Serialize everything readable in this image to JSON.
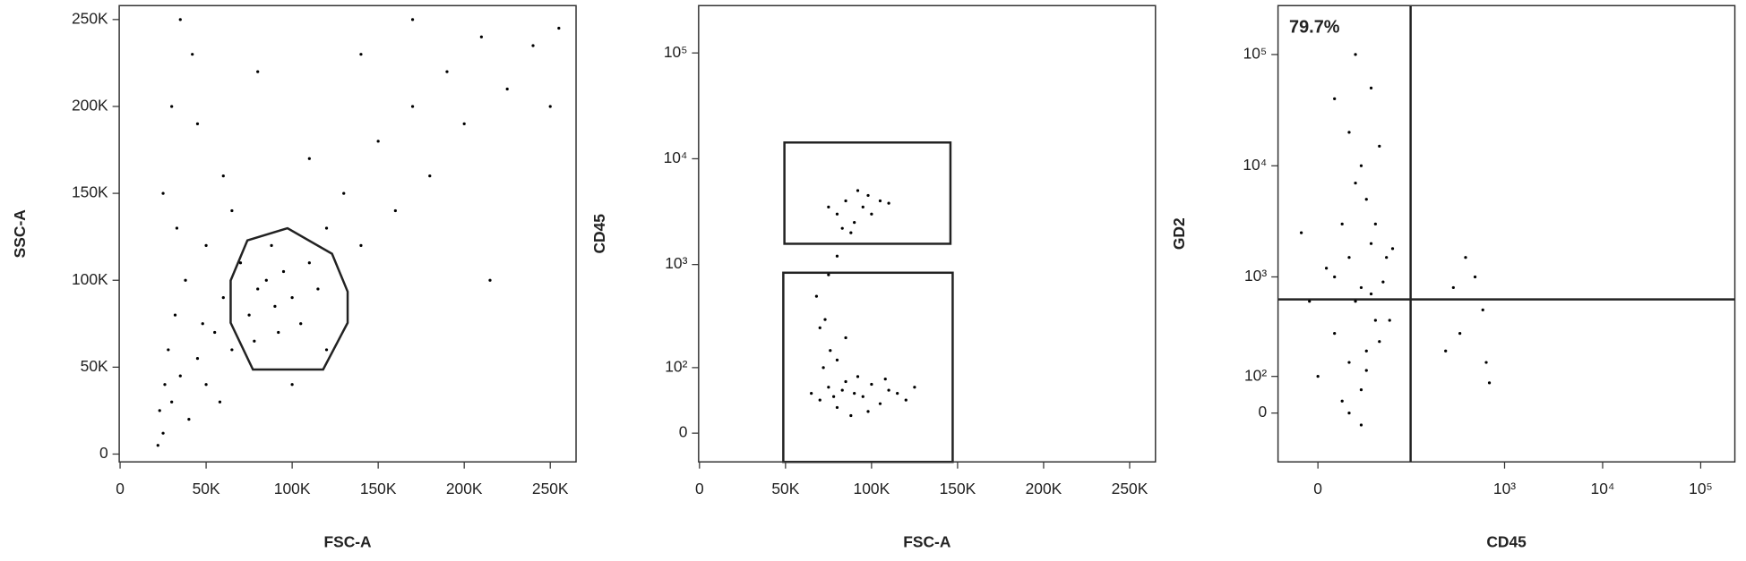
{
  "chart_data": [
    {
      "type": "scatter",
      "xlabel": "FSC-A",
      "ylabel": "SSC-A",
      "xscale": "linear",
      "yscale": "linear",
      "color": "#000000",
      "xlim": [
        -500,
        265000
      ],
      "ylim": [
        -4500,
        258000
      ],
      "xticks": [
        0,
        {
          "value": 50000,
          "label": "50K"
        },
        {
          "value": 100000,
          "label": "100K"
        },
        {
          "value": 150000,
          "label": "150K"
        },
        {
          "value": 200000,
          "label": "200K"
        },
        {
          "value": 250000,
          "label": "250K"
        }
      ],
      "yticks": [
        0,
        {
          "value": 50000,
          "label": "50K"
        },
        {
          "value": 100000,
          "label": "100K"
        },
        {
          "value": 150000,
          "label": "150K"
        },
        {
          "value": 200000,
          "label": "200K"
        },
        {
          "value": 250000,
          "label": "250K"
        }
      ],
      "x": [
        22000,
        25000,
        30000,
        35000,
        28000,
        40000,
        45000,
        50000,
        32000,
        38000,
        25000,
        30000,
        35000,
        55000,
        60000,
        65000,
        70000,
        75000,
        80000,
        85000,
        90000,
        95000,
        100000,
        105000,
        110000,
        88000,
        92000,
        78000,
        115000,
        120000,
        130000,
        140000,
        150000,
        160000,
        170000,
        180000,
        190000,
        200000,
        210000,
        225000,
        240000,
        255000,
        60000,
        45000,
        80000,
        110000,
        140000,
        170000,
        120000,
        100000,
        65000,
        42000,
        50000,
        33000,
        26000,
        23000,
        48000,
        58000,
        215000,
        250000
      ],
      "values": [
        5000,
        12000,
        30000,
        45000,
        60000,
        20000,
        55000,
        40000,
        80000,
        100000,
        150000,
        200000,
        250000,
        70000,
        90000,
        60000,
        110000,
        80000,
        95000,
        100000,
        85000,
        105000,
        90000,
        75000,
        110000,
        120000,
        70000,
        65000,
        95000,
        130000,
        150000,
        120000,
        180000,
        140000,
        200000,
        160000,
        220000,
        190000,
        240000,
        210000,
        235000,
        245000,
        160000,
        190000,
        220000,
        170000,
        230000,
        250000,
        60000,
        40000,
        140000,
        230000,
        120000,
        130000,
        40000,
        25000,
        75000,
        30000,
        100000,
        200000
      ]
    },
    {
      "type": "scatter",
      "xlabel": "FSC-A",
      "ylabel": "CD45",
      "xscale": "linear",
      "yscale": "biexponential",
      "color": "#000000",
      "xlim": [
        -500,
        265000
      ],
      "ylim": [
        -34,
        280000
      ],
      "xticks": [
        0,
        {
          "value": 50000,
          "label": "50K"
        },
        {
          "value": 100000,
          "label": "100K"
        },
        {
          "value": 150000,
          "label": "150K"
        },
        {
          "value": 200000,
          "label": "200K"
        },
        {
          "value": 250000,
          "label": "250K"
        }
      ],
      "yticks": [
        0,
        {
          "value": 100,
          "label": "10²"
        },
        {
          "value": 1000,
          "label": "10³"
        },
        {
          "value": 10000,
          "label": "10⁴"
        },
        {
          "value": 100000,
          "label": "10⁵"
        }
      ],
      "x": [
        70000,
        75000,
        80000,
        85000,
        90000,
        95000,
        100000,
        105000,
        110000,
        115000,
        120000,
        88000,
        92000,
        98000,
        83000,
        78000,
        108000,
        125000,
        65000,
        72000,
        76000,
        70000,
        68000,
        73000,
        80000,
        85000,
        75000,
        80000,
        80000,
        85000,
        90000,
        95000,
        100000,
        88000,
        105000,
        92000,
        75000,
        110000,
        83000,
        98000
      ],
      "values": [
        40,
        60,
        30,
        70,
        50,
        45,
        65,
        35,
        55,
        50,
        40,
        20,
        80,
        25,
        55,
        45,
        75,
        60,
        50,
        100,
        150,
        250,
        500,
        300,
        120,
        200,
        800,
        1200,
        3000,
        4000,
        2500,
        3500,
        3000,
        2000,
        4000,
        5000,
        3500,
        3800,
        2200,
        4500
      ]
    },
    {
      "type": "scatter",
      "xlabel": "CD45",
      "ylabel": "GD2",
      "xscale": "biexponential",
      "yscale": "biexponential",
      "color": "#000000",
      "annotation": "79.7%",
      "xlim": [
        -27,
        223000
      ],
      "ylim": [
        -143,
        275000
      ],
      "xticks": [
        0,
        {
          "value": 1000,
          "label": "10³"
        },
        {
          "value": 10000,
          "label": "10⁴"
        },
        {
          "value": 100000,
          "label": "10⁵"
        }
      ],
      "yticks": [
        0,
        {
          "value": 100,
          "label": "10²"
        },
        {
          "value": 1000,
          "label": "10³"
        },
        {
          "value": 10000,
          "label": "10⁴"
        },
        {
          "value": 100000,
          "label": "10⁵"
        }
      ],
      "x": [
        10,
        20,
        30,
        40,
        15,
        25,
        35,
        45,
        5,
        30,
        20,
        40,
        25,
        10,
        35,
        20,
        50,
        0,
        30,
        15,
        40,
        55,
        60,
        -10,
        -5,
        25,
        45,
        50,
        10,
        35,
        20,
        30,
        65,
        70,
        300,
        400,
        250,
        600,
        700,
        500,
        350,
        650
      ],
      "values": [
        1000,
        1500,
        800,
        2000,
        3000,
        600,
        5000,
        400,
        1200,
        10000,
        20000,
        50000,
        100000,
        300,
        200,
        150,
        250,
        100,
        60,
        30,
        700,
        900,
        1500,
        2500,
        600,
        7000,
        3000,
        15000,
        40000,
        120,
        0,
        -30,
        400,
        1800,
        800,
        1500,
        200,
        500,
        80,
        1000,
        300,
        150
      ]
    }
  ]
}
